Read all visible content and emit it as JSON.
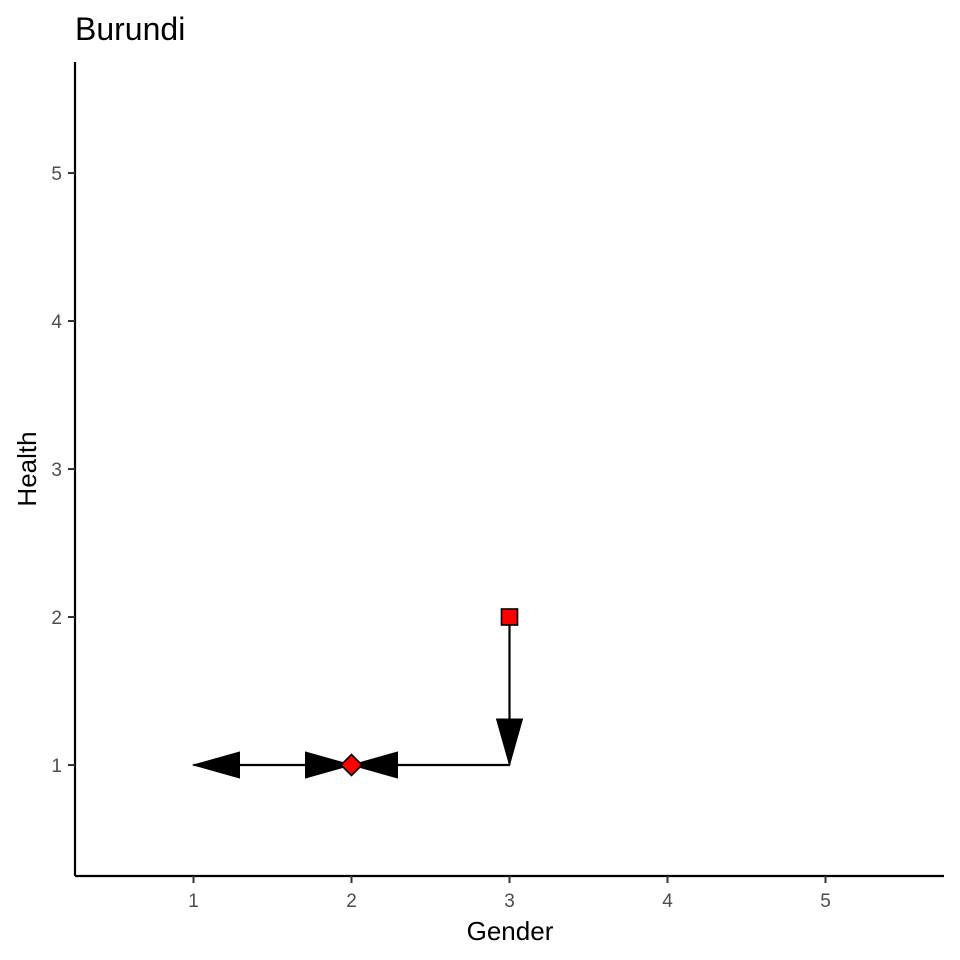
{
  "chart_data": {
    "type": "scatter",
    "title": "Burundi",
    "xlabel": "Gender",
    "ylabel": "Health",
    "xlim": [
      0.25,
      5.75
    ],
    "ylim": [
      0.25,
      5.75
    ],
    "xticks": [
      1,
      2,
      3,
      4,
      5
    ],
    "yticks": [
      1,
      2,
      3,
      4,
      5
    ],
    "grid": false,
    "points": [
      {
        "x": 3,
        "y": 2,
        "shape": "square",
        "fill": "#ff0000"
      },
      {
        "x": 2,
        "y": 1,
        "shape": "diamond",
        "fill": "#ff0000"
      }
    ],
    "paths": [
      {
        "from": [
          3,
          2
        ],
        "to": [
          3,
          1
        ],
        "arrow": "end"
      },
      {
        "from": [
          3,
          1
        ],
        "to": [
          2,
          1
        ],
        "arrow": "end"
      },
      {
        "from": [
          2,
          1
        ],
        "to": [
          1,
          1
        ],
        "arrow": "both"
      }
    ],
    "colors": {
      "marker_fill": "#ff0000",
      "marker_stroke": "#000000",
      "line": "#000000",
      "tick_label": "#4d4d4d"
    }
  }
}
